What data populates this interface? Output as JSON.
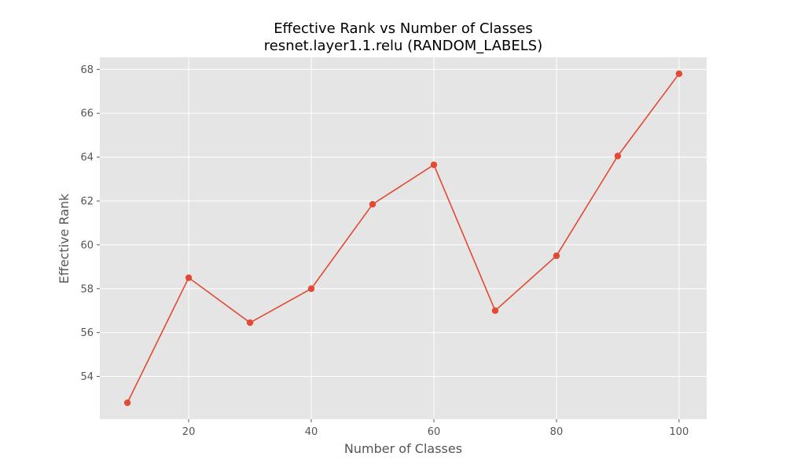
{
  "chart_data": {
    "type": "line",
    "title": "Effective Rank vs Number of Classes",
    "subtitle": "resnet.layer1.1.relu (RANDOM_LABELS)",
    "xlabel": "Number of Classes",
    "ylabel": "Effective Rank",
    "x": [
      10,
      20,
      30,
      40,
      50,
      60,
      70,
      80,
      90,
      100
    ],
    "series": [
      {
        "values": [
          52.8,
          58.5,
          56.45,
          58.0,
          61.85,
          63.65,
          57.0,
          59.5,
          64.05,
          67.8
        ]
      }
    ],
    "xlim": [
      5.5,
      104.5
    ],
    "ylim": [
      52.05,
      68.55
    ],
    "xticks": [
      20,
      40,
      60,
      80,
      100
    ],
    "yticks": [
      54,
      56,
      58,
      60,
      62,
      64,
      66,
      68
    ],
    "grid": true,
    "line_color": "#E24A33",
    "plot_background": "#E5E5E5"
  }
}
